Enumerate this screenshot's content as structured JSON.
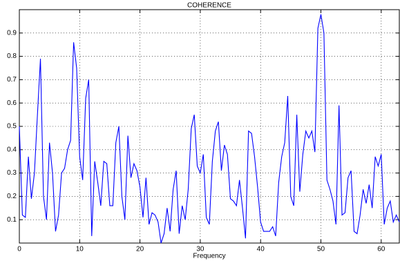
{
  "chart_data": {
    "type": "line",
    "title": "COHERENCE",
    "x_label": "Frequency",
    "x": [
      0,
      0.5,
      1,
      1.5,
      2,
      2.5,
      3,
      3.5,
      4,
      4.5,
      5,
      5.5,
      6,
      6.5,
      7,
      7.5,
      8,
      8.5,
      9,
      9.5,
      10,
      10.5,
      11,
      11.5,
      12,
      12.5,
      13,
      13.5,
      14,
      14.5,
      15,
      15.5,
      16,
      16.5,
      17,
      17.5,
      18,
      18.5,
      19,
      19.5,
      20,
      20.5,
      21,
      21.5,
      22,
      22.5,
      23,
      23.5,
      24,
      24.5,
      25,
      25.5,
      26,
      26.5,
      27,
      27.5,
      28,
      28.5,
      29,
      29.5,
      30,
      30.5,
      31,
      31.5,
      32,
      32.5,
      33,
      33.5,
      34,
      34.5,
      35,
      35.5,
      36,
      36.5,
      37,
      37.5,
      38,
      38.5,
      39,
      39.5,
      40,
      40.5,
      41,
      41.5,
      42,
      42.5,
      43,
      43.5,
      44,
      44.5,
      45,
      45.5,
      46,
      46.5,
      47,
      47.5,
      48,
      48.5,
      49,
      49.5,
      50,
      50.5,
      51,
      51.5,
      52,
      52.5,
      53,
      53.5,
      54,
      54.5,
      55,
      55.5,
      56,
      56.5,
      57,
      57.5,
      58,
      58.5,
      59,
      59.5,
      60,
      60.5,
      61,
      61.5,
      62,
      62.5,
      63
    ],
    "series": [
      {
        "color": "#0000ff",
        "values": [
          0.5,
          0.12,
          0.11,
          0.37,
          0.19,
          0.3,
          0.55,
          0.79,
          0.2,
          0.1,
          0.43,
          0.3,
          0.05,
          0.12,
          0.3,
          0.32,
          0.4,
          0.44,
          0.86,
          0.75,
          0.37,
          0.27,
          0.62,
          0.7,
          0.03,
          0.35,
          0.26,
          0.16,
          0.35,
          0.34,
          0.16,
          0.16,
          0.43,
          0.5,
          0.2,
          0.1,
          0.46,
          0.28,
          0.34,
          0.31,
          0.24,
          0.11,
          0.28,
          0.08,
          0.13,
          0.12,
          0.09,
          0.0,
          0.04,
          0.15,
          0.05,
          0.23,
          0.31,
          0.04,
          0.16,
          0.1,
          0.23,
          0.49,
          0.55,
          0.33,
          0.3,
          0.38,
          0.11,
          0.08,
          0.35,
          0.48,
          0.52,
          0.31,
          0.42,
          0.38,
          0.19,
          0.18,
          0.16,
          0.27,
          0.15,
          0.02,
          0.48,
          0.47,
          0.37,
          0.24,
          0.09,
          0.05,
          0.05,
          0.05,
          0.07,
          0.03,
          0.26,
          0.37,
          0.43,
          0.63,
          0.2,
          0.16,
          0.55,
          0.22,
          0.38,
          0.48,
          0.45,
          0.48,
          0.39,
          0.92,
          0.98,
          0.9,
          0.27,
          0.23,
          0.18,
          0.08,
          0.59,
          0.12,
          0.13,
          0.28,
          0.31,
          0.05,
          0.04,
          0.12,
          0.23,
          0.17,
          0.25,
          0.15,
          0.37,
          0.33,
          0.38,
          0.08,
          0.15,
          0.18,
          0.09,
          0.12,
          0.09
        ]
      }
    ],
    "xlim": [
      0,
      63
    ],
    "ylim": [
      0,
      1
    ],
    "xticks": [
      0,
      10,
      20,
      30,
      40,
      50,
      60
    ],
    "yticks": [
      0.1,
      0.2,
      0.3,
      0.4,
      0.5,
      0.6,
      0.7,
      0.8,
      0.9
    ],
    "grid": true
  }
}
